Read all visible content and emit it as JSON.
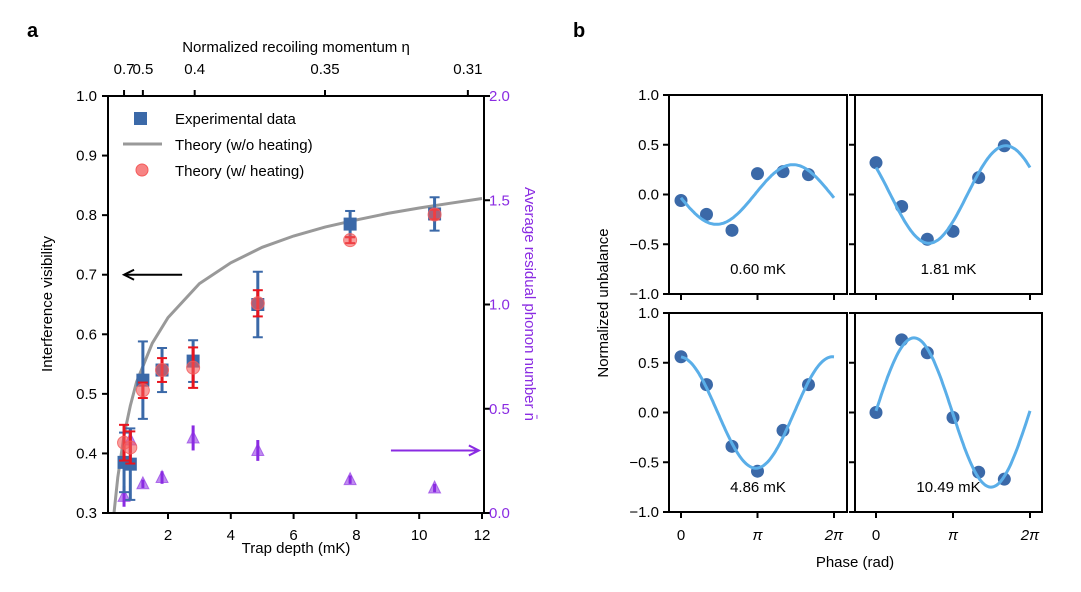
{
  "chart_data": [
    {
      "type": "scatter",
      "panel_label": "a",
      "title": "",
      "xlabel": "Trap depth (mK)",
      "ylabel": "Interference visibility",
      "y2label": "Average residual phonon number n̄",
      "top_xlabel": "Normalized recoiling momentum η",
      "xlim": [
        0,
        12
      ],
      "ylim": [
        0.3,
        1.0
      ],
      "y2lim": [
        0.0,
        2.0
      ],
      "xticks": [
        2,
        4,
        6,
        8,
        10,
        12
      ],
      "yticks": [
        "0.3",
        "0.4",
        "0.5",
        "0.6",
        "0.7",
        "0.8",
        "0.9",
        "1.0"
      ],
      "y2ticks": [
        "0.0",
        "0.5",
        "1.0",
        "1.5",
        "2.0"
      ],
      "top_ticks": [
        {
          "label": "0.7",
          "x": 0.6
        },
        {
          "label": "0.5",
          "x": 1.2
        },
        {
          "label": "0.4",
          "x": 2.85
        },
        {
          "label": "0.35",
          "x": 7.0
        },
        {
          "label": "0.31",
          "x": 11.55
        }
      ],
      "legend": {
        "placement": "top-left",
        "entries": [
          {
            "label": "Experimental data",
            "marker": "square",
            "color": "#3b69a8"
          },
          {
            "label": "Theory (w/o heating)",
            "marker": "line",
            "color": "#999999"
          },
          {
            "label": "Theory (w/ heating)",
            "marker": "circle",
            "color": "#f45b5b"
          }
        ]
      },
      "series": [
        {
          "name": "Experimental data",
          "color": "#3b69a8",
          "x": [
            0.6,
            0.8,
            1.2,
            1.81,
            2.8,
            4.86,
            7.8,
            10.49
          ],
          "y": [
            0.385,
            0.382,
            0.523,
            0.54,
            0.555,
            0.65,
            0.785,
            0.802
          ],
          "yerr": [
            0.05,
            0.06,
            0.065,
            0.037,
            0.035,
            0.055,
            0.022,
            0.028
          ]
        },
        {
          "name": "Theory (w/ heating)",
          "color": "#f45b5b",
          "x": [
            0.6,
            0.8,
            1.2,
            1.81,
            2.8,
            4.86,
            7.8,
            10.49
          ],
          "y": [
            0.418,
            0.41,
            0.506,
            0.54,
            0.544,
            0.652,
            0.758,
            0.801
          ],
          "yerr": [
            0.03,
            0.027,
            0.013,
            0.02,
            0.034,
            0.022,
            0.005,
            0.008
          ]
        },
        {
          "name": "Average residual phonon number",
          "axis": "right",
          "color": "#8a2be2",
          "x": [
            0.6,
            0.8,
            1.2,
            1.81,
            2.8,
            4.86,
            7.8,
            10.49
          ],
          "y": [
            0.08,
            0.35,
            0.14,
            0.17,
            0.36,
            0.3,
            0.16,
            0.12
          ],
          "yerr": [
            0.05,
            0.06,
            0.02,
            0.03,
            0.06,
            0.05,
            0.02,
            0.02
          ]
        },
        {
          "name": "Theory (w/o heating)",
          "type": "line",
          "color": "#999999",
          "x": [
            0.28,
            0.4,
            0.6,
            0.8,
            1.0,
            1.5,
            2.0,
            3.0,
            4.0,
            5.0,
            6.0,
            7.0,
            8.0,
            9.0,
            10.0,
            11.0,
            12.0
          ],
          "y": [
            0.3,
            0.36,
            0.43,
            0.48,
            0.52,
            0.585,
            0.628,
            0.685,
            0.72,
            0.746,
            0.765,
            0.78,
            0.792,
            0.803,
            0.812,
            0.82,
            0.828
          ]
        }
      ],
      "annotations": [
        {
          "type": "arrow",
          "direction": "left",
          "color": "#000000",
          "at_y": 0.7,
          "from_x": 2.45,
          "to_x": 0.6
        },
        {
          "type": "arrow",
          "direction": "right",
          "color": "#8a2be2",
          "at_y2": 0.3,
          "from_x": 9.1,
          "to_x": 11.9
        }
      ]
    },
    {
      "type": "line",
      "panel_label": "b",
      "xlabel": "Phase (rad)",
      "ylabel": "Normalized unbalance",
      "xlim": [
        -0.3,
        6.6
      ],
      "ylim": [
        -1.0,
        1.0
      ],
      "xticks": [
        "0",
        "π",
        "2π"
      ],
      "yticks": [
        "−1.0",
        "−0.5",
        "0.0",
        "0.5",
        "1.0"
      ],
      "subplots": [
        {
          "label": "0.60 mK",
          "points_x": [
            0,
            1.047,
            2.094,
            3.1416,
            4.189,
            5.236
          ],
          "points_y": [
            -0.06,
            -0.2,
            -0.36,
            0.21,
            0.23,
            0.2
          ],
          "fit": {
            "amplitude": 0.3,
            "phase_of_max": 4.6,
            "offset": 0.0
          }
        },
        {
          "label": "1.81 mK",
          "points_x": [
            0,
            1.047,
            2.094,
            3.1416,
            4.189,
            5.236
          ],
          "points_y": [
            0.32,
            -0.12,
            -0.45,
            -0.37,
            0.17,
            0.49
          ],
          "fit": {
            "amplitude": 0.49,
            "phase_of_max": 5.3,
            "offset": 0.0
          }
        },
        {
          "label": "4.86 mK",
          "points_x": [
            0,
            1.047,
            2.094,
            3.1416,
            4.189,
            5.236
          ],
          "points_y": [
            0.56,
            0.28,
            -0.34,
            -0.59,
            -0.18,
            0.28
          ],
          "fit": {
            "amplitude": 0.56,
            "phase_of_max": 6.22,
            "offset": 0.0
          }
        },
        {
          "label": "10.49 mK",
          "points_x": [
            0,
            1.047,
            2.094,
            3.1416,
            4.189,
            5.236
          ],
          "points_y": [
            0.0,
            0.73,
            0.6,
            -0.05,
            -0.6,
            -0.67
          ],
          "fit": {
            "amplitude": 0.75,
            "phase_of_max": 1.55,
            "offset": 0.0
          }
        }
      ],
      "colors": {
        "points": "#3b69a8",
        "fit": "#5aaee8"
      }
    }
  ]
}
